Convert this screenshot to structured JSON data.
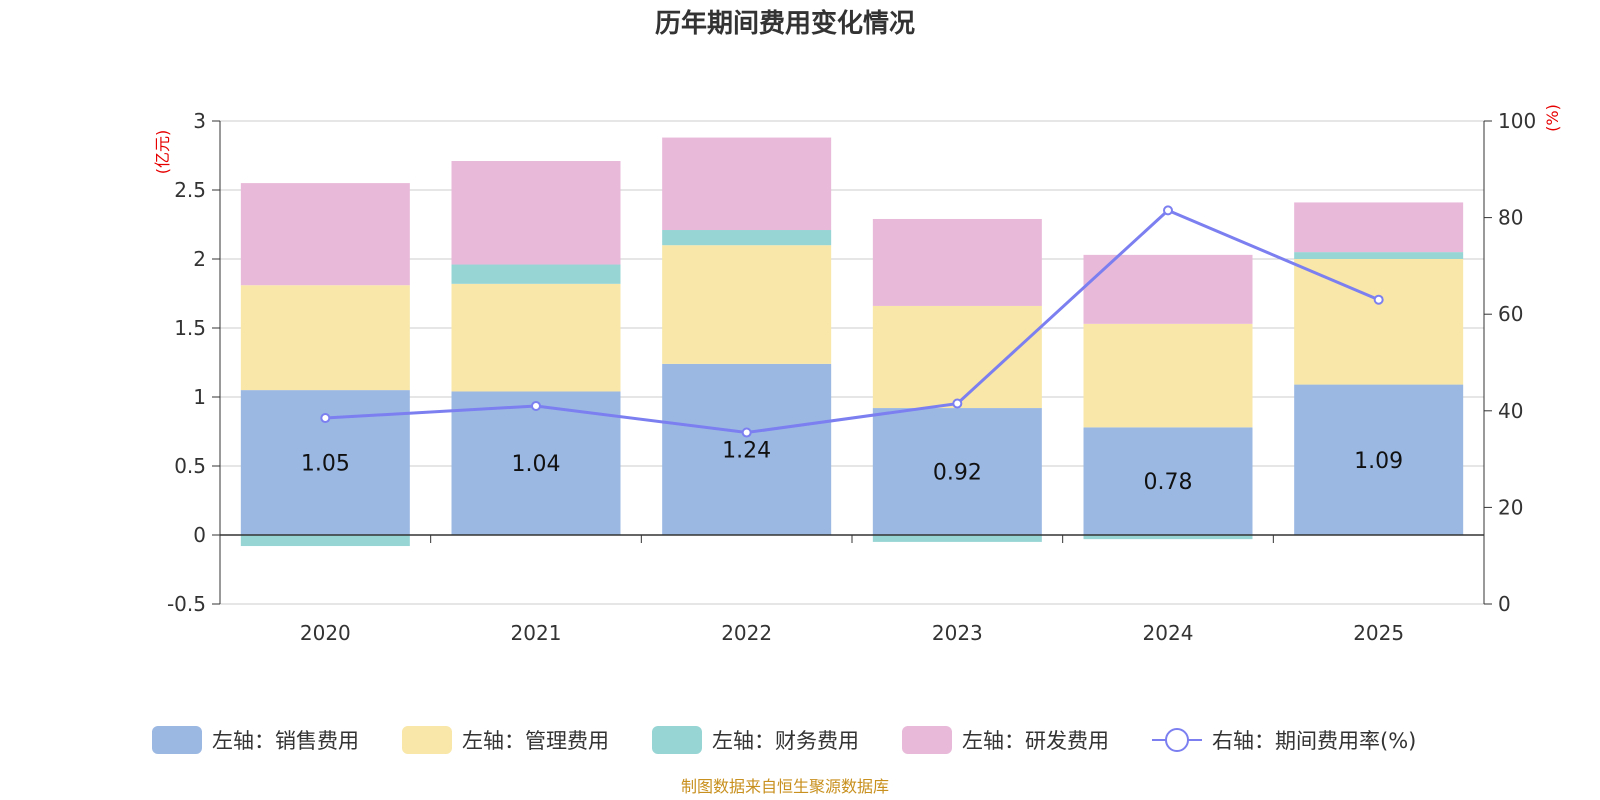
{
  "chart_data": {
    "type": "bar",
    "title": "历年期间费用变化情况",
    "categories": [
      "2020",
      "2021",
      "2022",
      "2023",
      "2024",
      "2025"
    ],
    "left_axis": {
      "unit": "(亿元)",
      "ylim": [
        -0.5,
        3
      ],
      "ticks": [
        "-0.5",
        "0",
        "0.5",
        "1",
        "1.5",
        "2",
        "2.5",
        "3"
      ]
    },
    "right_axis": {
      "unit": "(%)",
      "ylim": [
        0,
        100
      ],
      "ticks": [
        "0",
        "20",
        "40",
        "60",
        "80",
        "100"
      ]
    },
    "series": [
      {
        "name": "左轴：销售费用",
        "type": "bar",
        "color": "#9bb8e3",
        "values": [
          1.05,
          1.04,
          1.24,
          0.92,
          0.78,
          1.09
        ],
        "labels": [
          "1.05",
          "1.04",
          "1.24",
          "0.92",
          "0.78",
          "1.09"
        ]
      },
      {
        "name": "左轴：管理费用",
        "type": "bar",
        "color": "#f8e7a8",
        "values": [
          0.76,
          0.78,
          0.86,
          0.74,
          0.75,
          0.91
        ]
      },
      {
        "name": "左轴：财务费用",
        "type": "bar",
        "color": "#97d5d5",
        "values": [
          -0.08,
          0.14,
          0.11,
          -0.05,
          -0.03,
          0.05
        ]
      },
      {
        "name": "左轴：研发费用",
        "type": "bar",
        "color": "#e8b9d9",
        "values": [
          0.74,
          0.75,
          0.67,
          0.63,
          0.5,
          0.36
        ]
      },
      {
        "name": "右轴：期间费用率(%)",
        "type": "line",
        "color": "#7b7ff0",
        "values": [
          38.5,
          41,
          35.5,
          41.5,
          81.5,
          63
        ]
      }
    ],
    "source": "制图数据来自恒生聚源数据库"
  }
}
